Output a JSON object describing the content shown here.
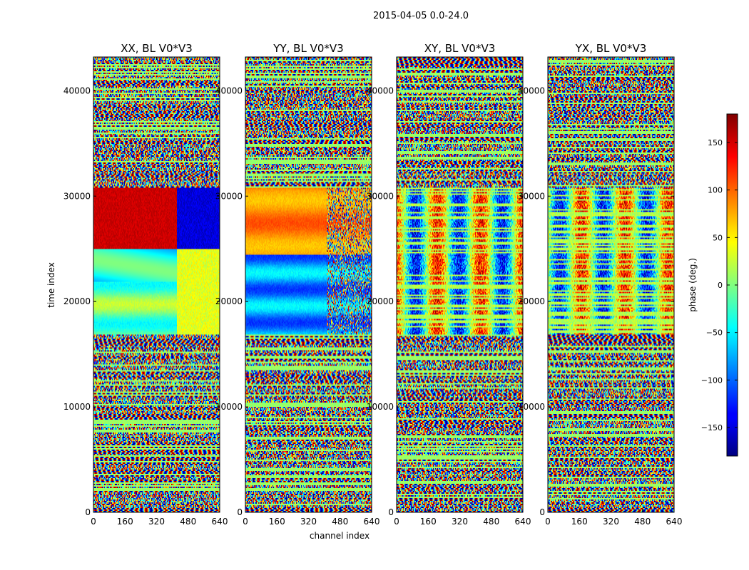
{
  "chart_data": {
    "type": "heatmap",
    "suptitle": "2015-04-05 0.0-24.0",
    "xlabel": "channel index",
    "ylabel": "time index",
    "xlim": [
      0,
      640
    ],
    "ylim": [
      0,
      43200
    ],
    "xticks": [
      0,
      160,
      320,
      480,
      640
    ],
    "yticks": [
      0,
      10000,
      20000,
      30000,
      40000
    ],
    "colormap": "jet",
    "panels": [
      {
        "title": "XX, BL V0*V3",
        "polarization": "XX"
      },
      {
        "title": "YY, BL V0*V3",
        "polarization": "YY"
      },
      {
        "title": "XY, BL V0*V3",
        "polarization": "XY"
      },
      {
        "title": "YX, BL V0*V3",
        "polarization": "YX"
      }
    ],
    "colorbar": {
      "label": "phase (deg.)",
      "range": [
        -180,
        180
      ],
      "ticks": [
        -150,
        -100,
        -50,
        0,
        50,
        100,
        150
      ]
    }
  }
}
